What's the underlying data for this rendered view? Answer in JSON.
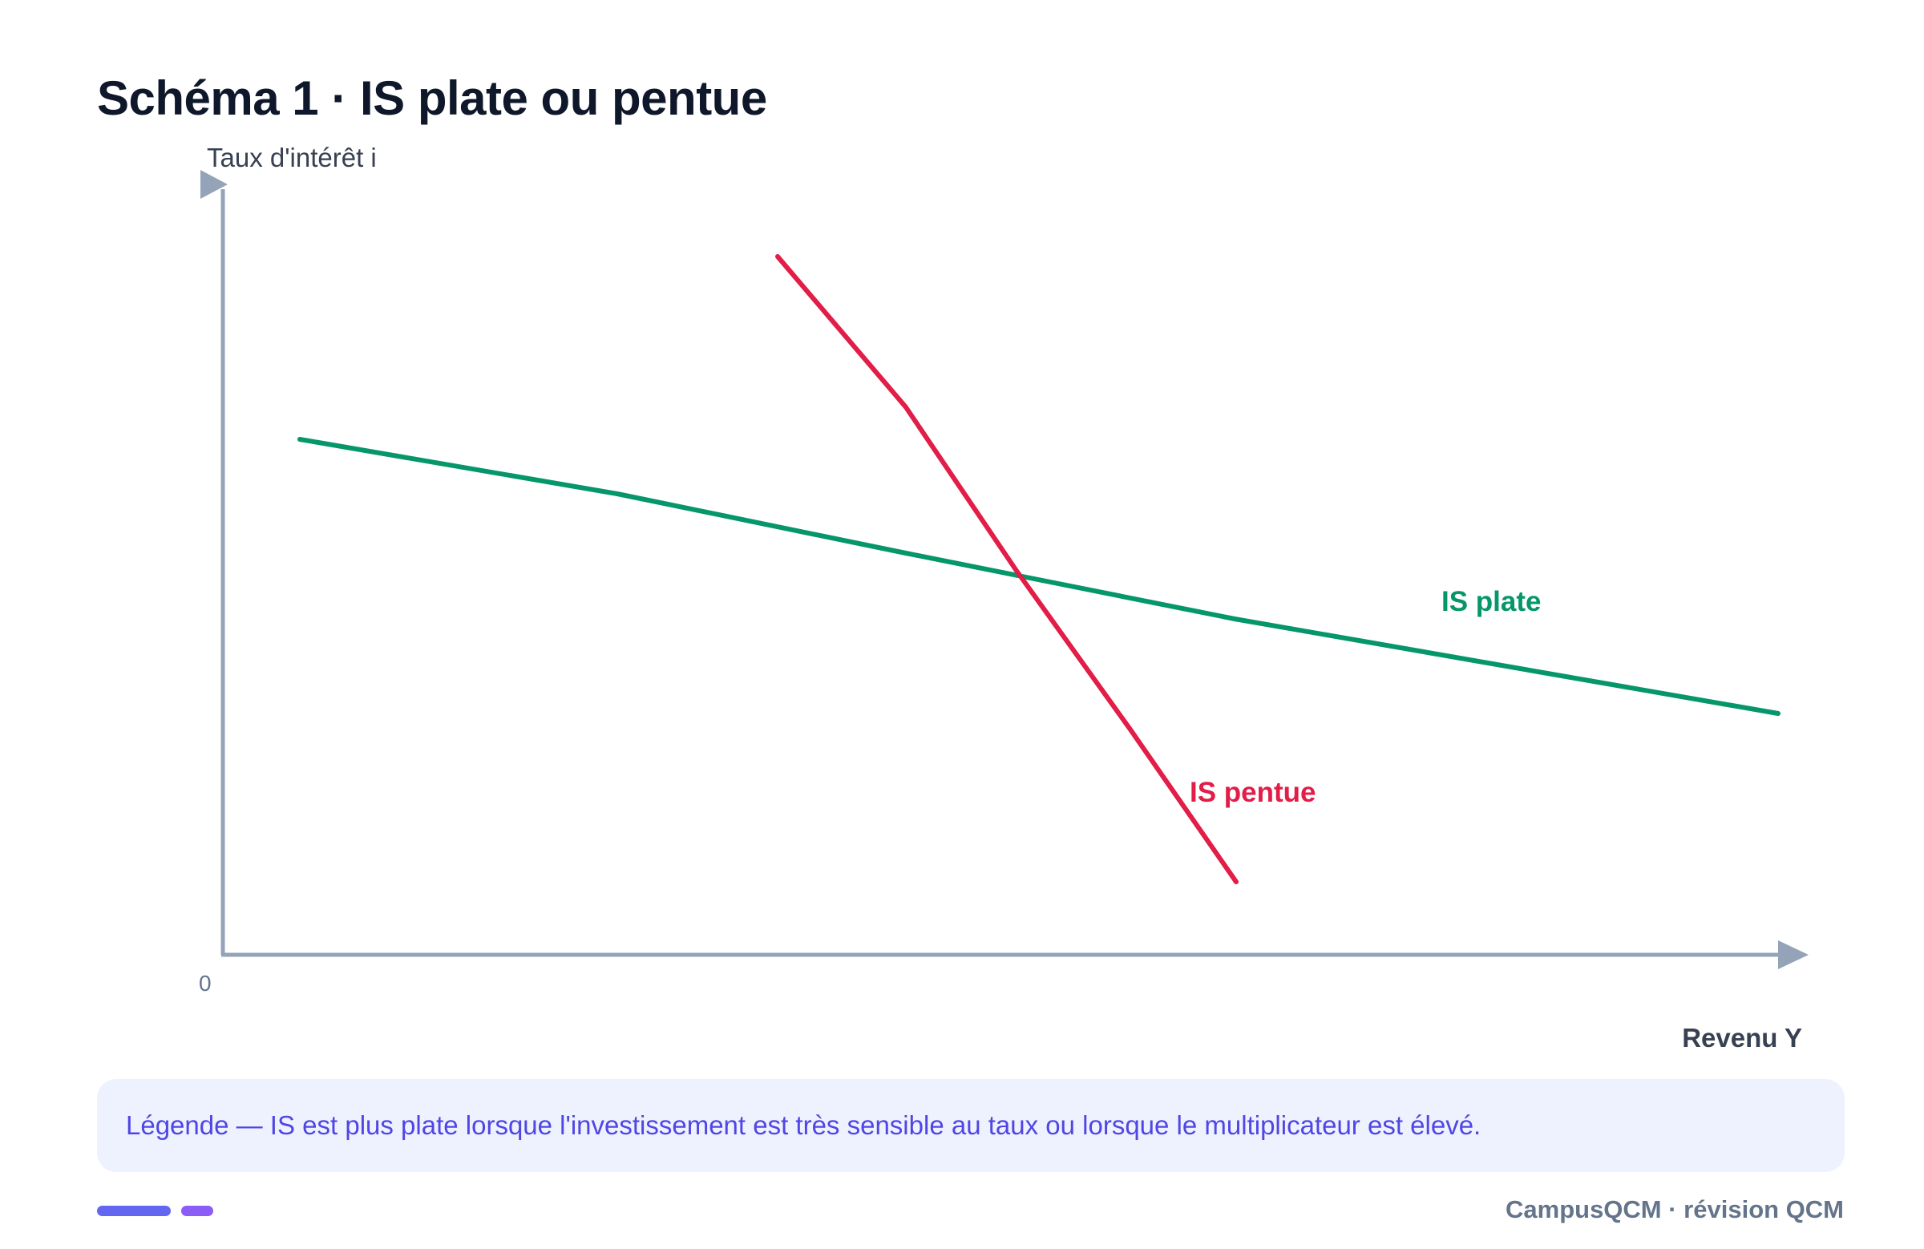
{
  "title": "Schéma 1 · IS plate ou pentue",
  "diagram": {
    "y_axis_label": "Taux d'intérêt i",
    "x_axis_label": "Revenu Y",
    "origin_label": "0",
    "curves": [
      {
        "id": "is-plate",
        "label": "IS plate",
        "color": "#059669"
      },
      {
        "id": "is-pentue",
        "label": "IS pentue",
        "color": "#e11d48"
      }
    ],
    "axis_color": "#94a3b8"
  },
  "legend": {
    "text": "Légende — IS est plus plate lorsque l'investissement est très sensible au taux ou lorsque le multiplicateur est élevé."
  },
  "footer": {
    "brand": "CampusQCM · révision QCM",
    "accent_colors": [
      "#6366f1",
      "#8b5cf6"
    ]
  }
}
